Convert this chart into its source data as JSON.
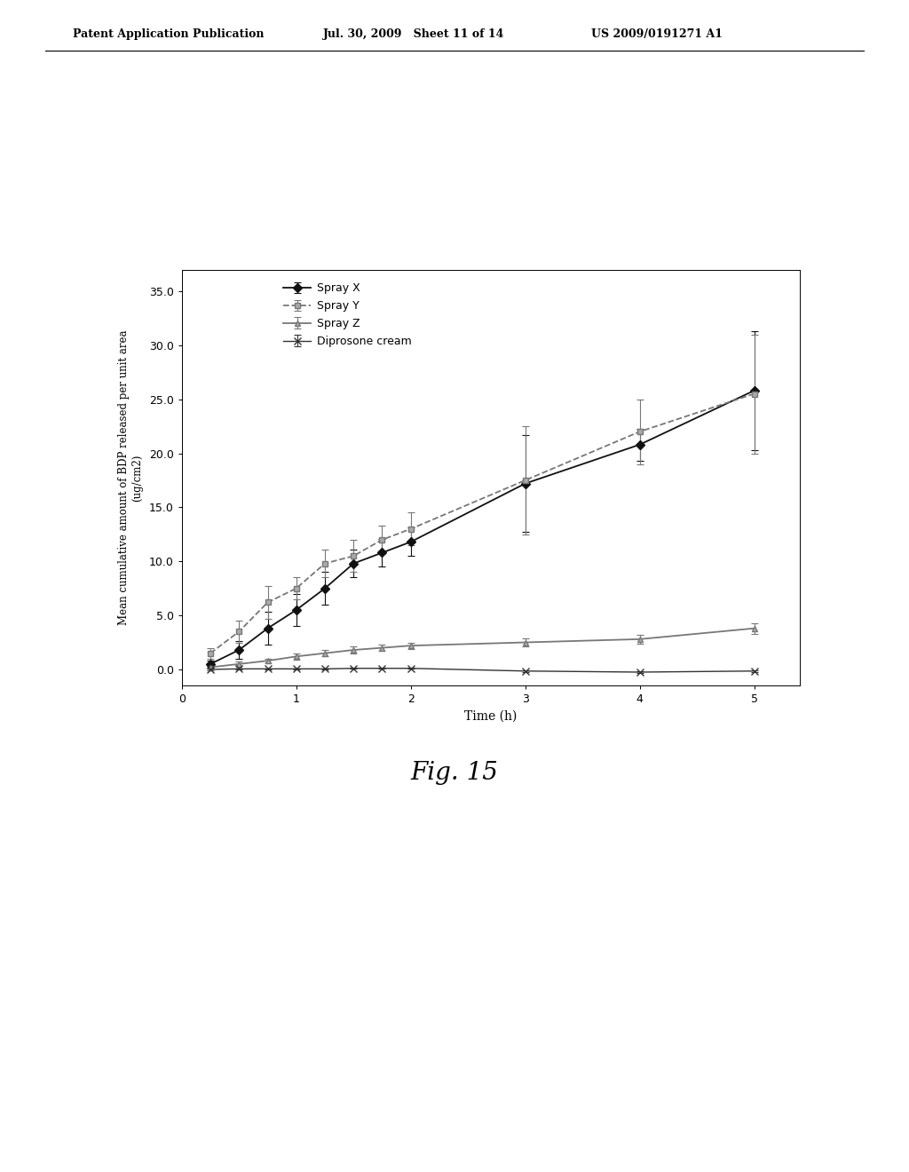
{
  "title": "",
  "xlabel": "Time (h)",
  "ylabel": "Mean cumulative amount of BDP released per unit area\n(ug/cm2)",
  "xlim": [
    0,
    5.4
  ],
  "ylim": [
    -1.5,
    37
  ],
  "ytick_vals": [
    0.0,
    5.0,
    10.0,
    15.0,
    20.0,
    25.0,
    30.0,
    35.0
  ],
  "ytick_labels": [
    "0.0",
    "5.0",
    "10.0",
    "15.0",
    "20.0",
    "25.0",
    "30.0",
    "35.0"
  ],
  "xticks": [
    0,
    1,
    2,
    3,
    4,
    5
  ],
  "fig_caption": "Fig. 15",
  "header_left": "Patent Application Publication",
  "header_mid": "Jul. 30, 2009   Sheet 11 of 14",
  "header_right": "US 2009/0191271 A1",
  "series": [
    {
      "label": "Spray X",
      "color": "#111111",
      "linestyle": "-",
      "marker": "D",
      "markersize": 5,
      "markerfacecolor": "#111111",
      "linewidth": 1.3,
      "x": [
        0.25,
        0.5,
        0.75,
        1.0,
        1.25,
        1.5,
        1.75,
        2.0,
        3.0,
        4.0,
        5.0
      ],
      "y": [
        0.5,
        1.8,
        3.8,
        5.5,
        7.5,
        9.8,
        10.8,
        11.8,
        17.2,
        20.8,
        25.8
      ],
      "yerr": [
        0.3,
        0.8,
        1.5,
        1.5,
        1.5,
        1.3,
        1.3,
        1.3,
        4.5,
        1.5,
        5.5
      ]
    },
    {
      "label": "Spray Y",
      "color": "#777777",
      "linestyle": "--",
      "marker": "s",
      "markersize": 5,
      "markerfacecolor": "#aaaaaa",
      "linewidth": 1.3,
      "x": [
        0.25,
        0.5,
        0.75,
        1.0,
        1.25,
        1.5,
        1.75,
        2.0,
        3.0,
        4.0,
        5.0
      ],
      "y": [
        1.5,
        3.5,
        6.2,
        7.5,
        9.8,
        10.5,
        12.0,
        13.0,
        17.5,
        22.0,
        25.5
      ],
      "yerr": [
        0.5,
        1.0,
        1.5,
        1.0,
        1.3,
        1.5,
        1.3,
        1.5,
        5.0,
        3.0,
        5.5
      ]
    },
    {
      "label": "Spray Z",
      "color": "#777777",
      "linestyle": "-",
      "marker": "^",
      "markersize": 5,
      "markerfacecolor": "#aaaaaa",
      "linewidth": 1.3,
      "x": [
        0.25,
        0.5,
        0.75,
        1.0,
        1.25,
        1.5,
        1.75,
        2.0,
        3.0,
        4.0,
        5.0
      ],
      "y": [
        0.2,
        0.5,
        0.8,
        1.2,
        1.5,
        1.8,
        2.0,
        2.2,
        2.5,
        2.8,
        3.8
      ],
      "yerr": [
        0.1,
        0.2,
        0.2,
        0.3,
        0.3,
        0.3,
        0.3,
        0.3,
        0.4,
        0.4,
        0.5
      ]
    },
    {
      "label": "Diprosone cream",
      "color": "#333333",
      "linestyle": "-",
      "marker": "x",
      "markersize": 6,
      "markerfacecolor": "#333333",
      "linewidth": 1.0,
      "x": [
        0.25,
        0.5,
        0.75,
        1.0,
        1.25,
        1.5,
        1.75,
        2.0,
        3.0,
        4.0,
        5.0
      ],
      "y": [
        0.0,
        0.05,
        0.05,
        0.05,
        0.05,
        0.1,
        0.1,
        0.1,
        -0.15,
        -0.25,
        -0.15
      ],
      "yerr": [
        0.05,
        0.05,
        0.05,
        0.05,
        0.05,
        0.05,
        0.05,
        0.05,
        0.1,
        0.1,
        0.1
      ]
    }
  ]
}
